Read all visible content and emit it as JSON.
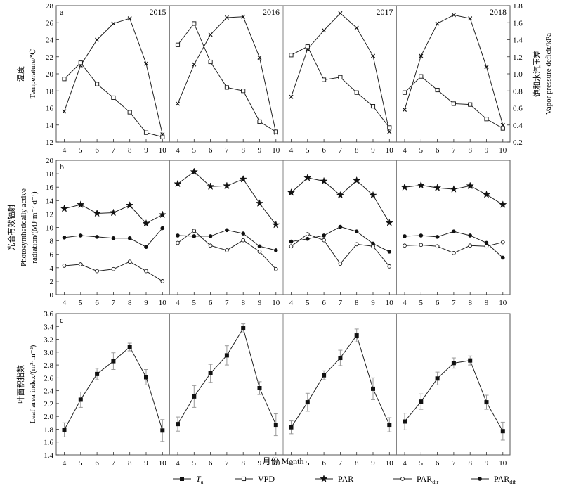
{
  "figure": {
    "x_axis_label": "月份 Month",
    "legend": [
      {
        "key": "ta",
        "label": "T",
        "sub": "a",
        "marker": "filled-square"
      },
      {
        "key": "vpd",
        "label": "VPD",
        "sub": "",
        "marker": "open-square"
      },
      {
        "key": "par",
        "label": "PAR",
        "sub": "",
        "marker": "star"
      },
      {
        "key": "par_dir",
        "label": "PAR",
        "sub": "dir",
        "marker": "open-circle"
      },
      {
        "key": "par_dif",
        "label": "PAR",
        "sub": "dif",
        "marker": "filled-circle"
      }
    ]
  },
  "chart_data": [
    {
      "type": "line",
      "panel_letter": "a",
      "ylabel_cn": "温度",
      "ylabel_en": "Temperature/℃",
      "y2label_cn": "饱和水汽压差",
      "y2label_en": "Vapor pressure deficit/kPa",
      "ylim": [
        12,
        28
      ],
      "y_ticks": [
        12,
        14,
        16,
        18,
        20,
        22,
        24,
        26,
        28
      ],
      "y2lim": [
        0.2,
        1.8
      ],
      "y2_ticks": [
        0.2,
        0.4,
        0.6,
        0.8,
        1.0,
        1.2,
        1.4,
        1.6,
        1.8
      ],
      "years": [
        "2015",
        "2016",
        "2017",
        "2018"
      ],
      "months": [
        4,
        5,
        6,
        7,
        8,
        9,
        10
      ],
      "series": [
        {
          "key": "ta",
          "axis": "left",
          "by_year": [
            [
              15.6,
              21.0,
              24.0,
              25.9,
              26.5,
              21.2,
              12.9
            ],
            [
              16.5,
              21.1,
              24.6,
              26.6,
              26.7,
              21.9,
              13.1
            ],
            [
              17.3,
              22.9,
              25.1,
              27.1,
              25.4,
              22.1,
              13.2
            ],
            [
              15.8,
              22.1,
              25.9,
              26.9,
              26.5,
              20.8,
              14.0
            ]
          ]
        },
        {
          "key": "vpd",
          "axis": "right",
          "by_year": [
            [
              0.94,
              1.13,
              0.88,
              0.72,
              0.55,
              0.31,
              0.26
            ],
            [
              1.34,
              1.59,
              1.14,
              0.84,
              0.8,
              0.44,
              0.32
            ],
            [
              1.22,
              1.32,
              0.93,
              0.96,
              0.78,
              0.62,
              0.37
            ],
            [
              0.78,
              0.97,
              0.81,
              0.65,
              0.64,
              0.47,
              0.36
            ]
          ]
        }
      ]
    },
    {
      "type": "line",
      "panel_letter": "b",
      "ylabel_cn": "光合有效辐射",
      "ylabel_en_1": "Photosynthetically active",
      "ylabel_en_2": "radiation/(MJ·m⁻² d⁻¹)",
      "ylim": [
        0,
        20
      ],
      "y_ticks": [
        0,
        2,
        4,
        6,
        8,
        10,
        12,
        14,
        16,
        18,
        20
      ],
      "months": [
        4,
        5,
        6,
        7,
        8,
        9,
        10
      ],
      "series": [
        {
          "key": "par",
          "by_year": [
            [
              12.8,
              13.4,
              12.1,
              12.2,
              13.3,
              10.6,
              11.9
            ],
            [
              16.5,
              18.3,
              16.1,
              16.2,
              17.2,
              13.6,
              10.4
            ],
            [
              15.2,
              17.4,
              16.9,
              14.8,
              17.0,
              14.8,
              10.7
            ],
            [
              16.0,
              16.3,
              15.9,
              15.7,
              16.2,
              14.9,
              13.4
            ]
          ]
        },
        {
          "key": "par_dir",
          "by_year": [
            [
              4.3,
              4.5,
              3.5,
              3.8,
              4.9,
              3.5,
              2.0
            ],
            [
              7.7,
              9.5,
              7.3,
              6.6,
              8.1,
              6.4,
              3.8
            ],
            [
              7.2,
              9.0,
              8.1,
              4.6,
              7.5,
              7.2,
              4.2
            ],
            [
              7.3,
              7.4,
              7.2,
              6.2,
              7.3,
              7.2,
              7.8
            ]
          ]
        },
        {
          "key": "par_dif",
          "by_year": [
            [
              8.5,
              8.8,
              8.6,
              8.4,
              8.4,
              7.1,
              9.9
            ],
            [
              8.8,
              8.7,
              8.7,
              9.6,
              9.1,
              7.2,
              6.6
            ],
            [
              7.9,
              8.3,
              8.8,
              10.1,
              9.4,
              7.6,
              6.4
            ],
            [
              8.7,
              8.8,
              8.6,
              9.4,
              8.8,
              7.7,
              5.5
            ]
          ]
        }
      ]
    },
    {
      "type": "line",
      "panel_letter": "c",
      "ylabel_cn": "叶面积指数",
      "ylabel_en": "Leaf area index/(m²·m⁻²)",
      "ylim": [
        1.4,
        3.6
      ],
      "y_ticks": [
        "1.4",
        "1.6",
        "1.8",
        "2.0",
        "2.2",
        "2.4",
        "2.6",
        "2.8",
        "3.0",
        "3.2",
        "3.4",
        "3.6"
      ],
      "months": [
        4,
        5,
        6,
        7,
        8,
        9,
        10
      ],
      "series": [
        {
          "key": "lai",
          "by_year": [
            [
              1.79,
              2.26,
              2.66,
              2.86,
              3.08,
              2.61,
              1.78
            ],
            [
              1.88,
              2.31,
              2.67,
              2.95,
              3.37,
              2.44,
              1.87
            ],
            [
              1.83,
              2.22,
              2.64,
              2.91,
              3.26,
              2.43,
              1.87
            ],
            [
              1.92,
              2.23,
              2.59,
              2.83,
              2.87,
              2.22,
              1.77
            ]
          ],
          "error_by_year": [
            [
              0.11,
              0.12,
              0.09,
              0.13,
              0.06,
              0.12,
              0.17
            ],
            [
              0.11,
              0.17,
              0.14,
              0.15,
              0.07,
              0.1,
              0.17
            ],
            [
              0.1,
              0.14,
              0.07,
              0.12,
              0.1,
              0.17,
              0.11
            ],
            [
              0.13,
              0.12,
              0.1,
              0.08,
              0.07,
              0.11,
              0.14
            ]
          ]
        }
      ]
    }
  ]
}
